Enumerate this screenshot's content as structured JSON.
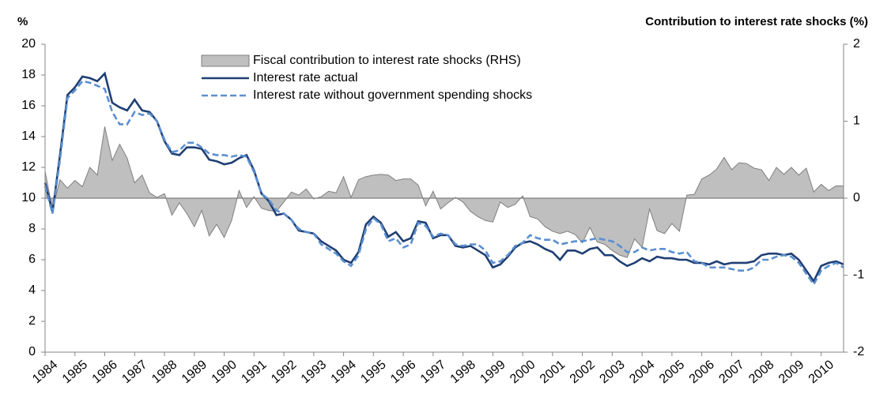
{
  "chart_data": {
    "type": "line",
    "y_label": "%",
    "y2_label": "Contribution to interest rate shocks (%)",
    "categories": [
      "1984",
      null,
      null,
      null,
      "1985",
      null,
      null,
      null,
      "1986",
      null,
      null,
      null,
      "1987",
      null,
      null,
      null,
      "1988",
      null,
      null,
      null,
      "1989",
      null,
      null,
      null,
      "1990",
      null,
      null,
      null,
      "1991",
      null,
      null,
      null,
      "1992",
      null,
      null,
      null,
      "1993",
      null,
      null,
      null,
      "1994",
      null,
      null,
      null,
      "1995",
      null,
      null,
      null,
      "1996",
      null,
      null,
      null,
      "1997",
      null,
      null,
      null,
      "1998",
      null,
      null,
      null,
      "1999",
      null,
      null,
      null,
      "2000",
      null,
      null,
      null,
      "2001",
      null,
      null,
      null,
      "2002",
      null,
      null,
      null,
      "2003",
      null,
      null,
      null,
      "2004",
      null,
      null,
      null,
      "2005",
      null,
      null,
      null,
      "2006",
      null,
      null,
      null,
      "2007",
      null,
      null,
      null,
      "2008",
      null,
      null,
      null,
      "2009",
      null,
      null,
      null,
      "2010",
      null,
      null,
      null
    ],
    "ylim": [
      0,
      20
    ],
    "yticks": [
      0,
      2,
      4,
      6,
      8,
      10,
      12,
      14,
      16,
      18,
      20
    ],
    "y2lim": [
      -2,
      2
    ],
    "y2ticks": [
      -2,
      -1,
      0,
      1,
      2
    ],
    "legend": "top",
    "series": [
      {
        "name": "Fiscal contribution to interest rate shocks (RHS)",
        "type": "area",
        "axis": "y2",
        "color": "#bfbfbf",
        "stroke": "#7f7f7f",
        "values": [
          0.35,
          -0.15,
          0.24,
          0.13,
          0.23,
          0.15,
          0.4,
          0.3,
          0.93,
          0.49,
          0.7,
          0.52,
          0.2,
          0.3,
          0.07,
          0.01,
          0.06,
          -0.22,
          -0.06,
          -0.2,
          -0.37,
          -0.16,
          -0.49,
          -0.34,
          -0.51,
          -0.29,
          0.1,
          -0.12,
          0.02,
          -0.13,
          -0.16,
          -0.17,
          -0.05,
          0.08,
          0.04,
          0.12,
          -0.01,
          0.02,
          0.09,
          0.07,
          0.28,
          0.01,
          0.24,
          0.28,
          0.3,
          0.31,
          0.3,
          0.23,
          0.25,
          0.25,
          0.17,
          -0.1,
          0.09,
          -0.14,
          -0.06,
          0.01,
          -0.05,
          -0.17,
          -0.24,
          -0.29,
          -0.31,
          -0.05,
          -0.12,
          -0.08,
          0.03,
          -0.24,
          -0.27,
          -0.37,
          -0.43,
          -0.46,
          -0.43,
          -0.47,
          -0.58,
          -0.38,
          -0.57,
          -0.6,
          -0.68,
          -0.74,
          -0.77,
          -0.53,
          -0.64,
          -0.14,
          -0.42,
          -0.46,
          -0.33,
          -0.43,
          0.04,
          0.05,
          0.25,
          0.3,
          0.38,
          0.53,
          0.37,
          0.46,
          0.45,
          0.39,
          0.37,
          0.23,
          0.4,
          0.31,
          0.4,
          0.3,
          0.39,
          0.08,
          0.18,
          0.1,
          0.16,
          0.16
        ]
      },
      {
        "name": "Interest rate actual",
        "type": "line",
        "color": "#1f3f73",
        "style": "solid",
        "values": [
          11.0,
          9.1,
          12.8,
          16.7,
          17.2,
          17.9,
          17.8,
          17.6,
          18.1,
          16.2,
          15.9,
          15.7,
          16.4,
          15.7,
          15.6,
          15.0,
          13.7,
          12.9,
          12.8,
          13.3,
          13.3,
          13.2,
          12.5,
          12.4,
          12.2,
          12.3,
          12.6,
          12.8,
          11.8,
          10.3,
          9.8,
          8.9,
          9.0,
          8.6,
          7.9,
          7.8,
          7.7,
          7.2,
          6.9,
          6.6,
          6.0,
          5.8,
          6.5,
          8.3,
          8.8,
          8.4,
          7.5,
          7.8,
          7.2,
          7.4,
          8.5,
          8.4,
          7.4,
          7.6,
          7.6,
          6.9,
          6.8,
          6.9,
          6.6,
          6.3,
          5.5,
          5.7,
          6.2,
          6.8,
          7.1,
          7.2,
          7.0,
          6.7,
          6.5,
          6.0,
          6.6,
          6.6,
          6.4,
          6.7,
          6.8,
          6.3,
          6.3,
          5.9,
          5.6,
          5.8,
          6.1,
          5.9,
          6.2,
          6.1,
          6.1,
          6.0,
          6.0,
          5.8,
          5.8,
          5.7,
          5.9,
          5.7,
          5.8,
          5.8,
          5.8,
          5.9,
          6.3,
          6.4,
          6.4,
          6.3,
          6.4,
          6.0,
          5.3,
          4.6,
          5.6,
          5.8,
          5.9,
          5.7
        ]
      },
      {
        "name": "Interest rate without government spending shocks",
        "type": "line",
        "color": "#5b8fd0",
        "style": "dashed",
        "values": [
          10.8,
          9.0,
          12.5,
          16.5,
          17.0,
          17.6,
          17.5,
          17.3,
          17.1,
          15.6,
          14.8,
          14.8,
          15.6,
          15.4,
          15.5,
          15.0,
          13.8,
          13.0,
          13.1,
          13.6,
          13.6,
          13.3,
          12.9,
          12.8,
          12.8,
          12.7,
          12.8,
          12.7,
          11.7,
          10.3,
          9.9,
          9.2,
          9.0,
          8.6,
          8.0,
          7.8,
          7.7,
          7.0,
          6.7,
          6.4,
          5.9,
          5.6,
          6.3,
          8.0,
          8.7,
          8.3,
          7.2,
          7.4,
          6.8,
          7.0,
          8.4,
          8.2,
          7.5,
          7.7,
          7.6,
          7.0,
          6.9,
          7.0,
          7.0,
          6.6,
          5.8,
          5.9,
          6.3,
          6.9,
          7.1,
          7.6,
          7.4,
          7.3,
          7.3,
          7.0,
          7.1,
          7.2,
          7.2,
          7.3,
          7.4,
          7.3,
          7.2,
          6.9,
          6.5,
          6.5,
          6.8,
          6.6,
          6.7,
          6.7,
          6.5,
          6.4,
          6.5,
          5.9,
          5.8,
          5.5,
          5.5,
          5.5,
          5.4,
          5.3,
          5.3,
          5.5,
          6.0,
          6.0,
          6.2,
          6.3,
          6.2,
          5.8,
          5.1,
          4.4,
          5.3,
          5.6,
          5.8,
          5.5
        ]
      }
    ]
  }
}
